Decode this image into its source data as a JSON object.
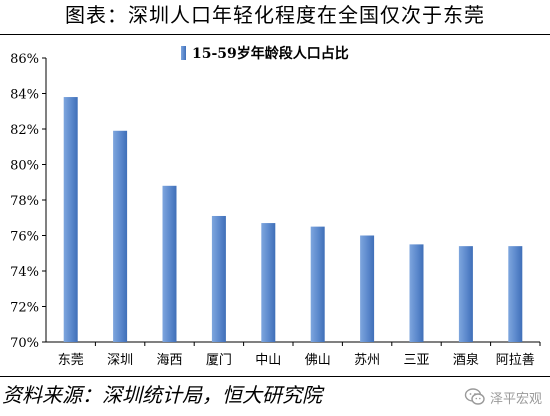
{
  "title": "图表：深圳人口年轻化程度在全国仅次于东莞",
  "source": "资料来源：深圳统计局，恒大研究院",
  "watermark": {
    "text": "泽平宏观",
    "icon": "wechat-chat-icon"
  },
  "colors": {
    "bar_light": "#7ea6de",
    "bar_dark": "#3f6fb8",
    "axis": "#000000"
  },
  "chart_data": {
    "type": "bar",
    "title": "",
    "xlabel": "",
    "ylabel": "",
    "categories": [
      "东莞",
      "深圳",
      "海西",
      "厦门",
      "中山",
      "佛山",
      "苏州",
      "三亚",
      "酒泉",
      "阿拉善"
    ],
    "series": [
      {
        "name": "15-59岁年龄段人口占比",
        "values": [
          83.8,
          81.9,
          78.8,
          77.1,
          76.7,
          76.5,
          76.0,
          75.5,
          75.4,
          75.4
        ]
      }
    ],
    "ylim": [
      70,
      86
    ],
    "yticks": [
      "70%",
      "72%",
      "74%",
      "76%",
      "78%",
      "80%",
      "82%",
      "84%",
      "86%"
    ],
    "grid": false,
    "legend_position": "top"
  }
}
